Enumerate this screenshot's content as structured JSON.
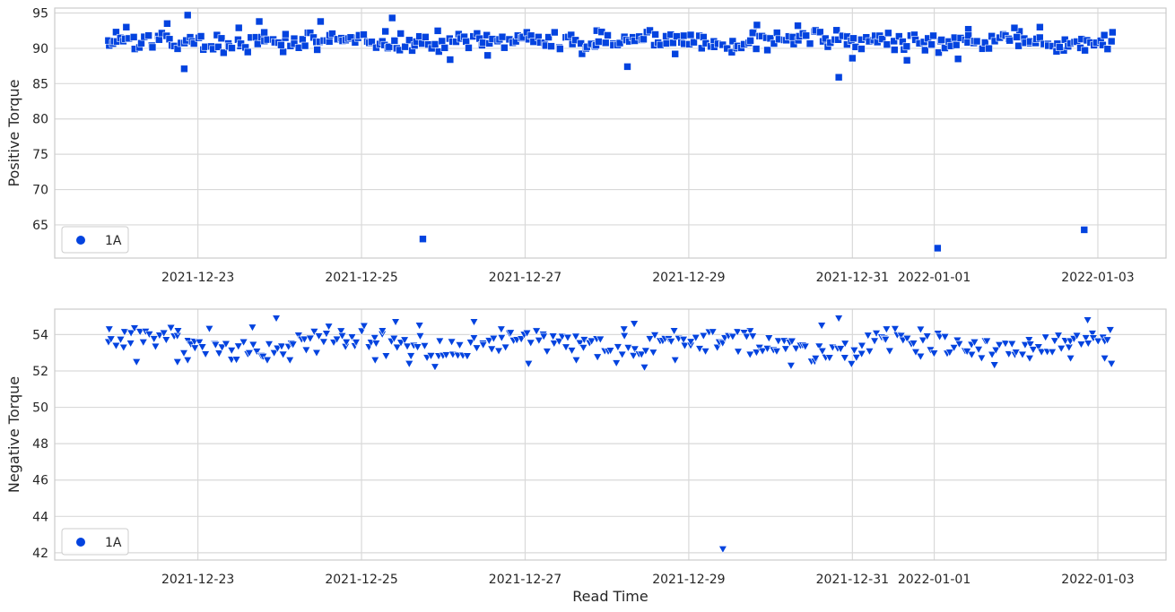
{
  "chart_data": [
    {
      "type": "scatter",
      "ylabel": "Positive Torque",
      "xlabel": "",
      "ylim": [
        60.3,
        95.7
      ],
      "xlim": [
        "2021-12-21 06:00",
        "2022-01-03 20:00"
      ],
      "yticks": [
        65,
        70,
        75,
        80,
        85,
        90,
        95
      ],
      "xticks": [
        "2021-12-23",
        "2021-12-25",
        "2021-12-27",
        "2021-12-29",
        "2021-12-31",
        "2022-01-01",
        "2022-01-03"
      ],
      "grid": true,
      "legend": {
        "entries": [
          "1A"
        ],
        "placement": "lower-left"
      },
      "series": [
        {
          "name": "1A",
          "marker": "square",
          "color": "#0343df",
          "baseline": 91.0,
          "amplitude": 1.2,
          "start": "2021-12-21 22:00",
          "end": "2022-01-03 04:00",
          "count": 340,
          "points": [
            [
              "2021-12-21 22:00",
              90.4
            ],
            [
              "2021-12-22 00:00",
              92.3
            ],
            [
              "2021-12-22 03:00",
              93.0
            ],
            [
              "2021-12-22 15:00",
              93.5
            ],
            [
              "2021-12-22 20:00",
              87.1
            ],
            [
              "2021-12-22 21:00",
              94.7
            ],
            [
              "2021-12-23 12:00",
              92.9
            ],
            [
              "2021-12-23 18:00",
              93.8
            ],
            [
              "2021-12-24 01:00",
              89.5
            ],
            [
              "2021-12-24 11:00",
              89.8
            ],
            [
              "2021-12-24 12:00",
              93.8
            ],
            [
              "2021-12-25 07:00",
              92.4
            ],
            [
              "2021-12-25 09:00",
              94.3
            ],
            [
              "2021-12-25 18:00",
              63.0
            ],
            [
              "2021-12-26 02:00",
              88.4
            ],
            [
              "2021-12-26 13:00",
              89.0
            ],
            [
              "2021-12-27 21:00",
              92.5
            ],
            [
              "2021-12-28 06:00",
              87.4
            ],
            [
              "2021-12-28 20:00",
              89.2
            ],
            [
              "2021-12-29 19:00",
              92.3
            ],
            [
              "2021-12-29 20:00",
              93.3
            ],
            [
              "2021-12-30 20:00",
              85.9
            ],
            [
              "2021-12-30 08:00",
              93.2
            ],
            [
              "2021-12-31 00:00",
              88.6
            ],
            [
              "2021-12-31 16:00",
              88.3
            ],
            [
              "2022-01-01 01:00",
              61.7
            ],
            [
              "2022-01-01 07:00",
              88.5
            ],
            [
              "2022-01-01 10:00",
              92.7
            ],
            [
              "2022-01-02 01:00",
              92.4
            ],
            [
              "2022-01-02 07:00",
              93.0
            ],
            [
              "2022-01-02 20:00",
              64.3
            ],
            [
              "2022-01-02 14:00",
              89.7
            ],
            [
              "2022-01-03 04:00",
              91.0
            ]
          ]
        }
      ]
    },
    {
      "type": "scatter",
      "ylabel": "Negative Torque",
      "xlabel": "Read Time",
      "ylim": [
        41.6,
        55.4
      ],
      "xlim": [
        "2021-12-21 06:00",
        "2022-01-03 20:00"
      ],
      "yticks": [
        42,
        44,
        46,
        48,
        50,
        52,
        54
      ],
      "xticks": [
        "2021-12-23",
        "2021-12-25",
        "2021-12-27",
        "2021-12-29",
        "2021-12-31",
        "2022-01-01",
        "2022-01-03"
      ],
      "grid": true,
      "legend": {
        "entries": [
          "1A"
        ],
        "placement": "lower-left"
      },
      "series": [
        {
          "name": "1A",
          "marker": "triangle-down",
          "color": "#0343df",
          "baseline": 53.5,
          "amplitude": 0.65,
          "start": "2021-12-21 22:00",
          "end": "2022-01-03 04:00",
          "count": 300,
          "points": [
            [
              "2021-12-21 22:00",
              54.3
            ],
            [
              "2021-12-22 06:00",
              52.5
            ],
            [
              "2021-12-22 18:00",
              52.5
            ],
            [
              "2021-12-22 21:00",
              52.6
            ],
            [
              "2021-12-23 16:00",
              54.4
            ],
            [
              "2021-12-23 23:00",
              54.9
            ],
            [
              "2021-12-24 03:00",
              52.6
            ],
            [
              "2021-12-24 18:00",
              54.2
            ],
            [
              "2021-12-25 04:00",
              52.6
            ],
            [
              "2021-12-25 10:00",
              54.7
            ],
            [
              "2021-12-25 14:00",
              52.4
            ],
            [
              "2021-12-25 17:00",
              54.5
            ],
            [
              "2021-12-26 09:00",
              54.7
            ],
            [
              "2021-12-26 17:00",
              54.3
            ],
            [
              "2021-12-27 01:00",
              52.4
            ],
            [
              "2021-12-27 15:00",
              52.6
            ],
            [
              "2021-12-28 05:00",
              54.3
            ],
            [
              "2021-12-28 08:00",
              54.6
            ],
            [
              "2021-12-28 11:00",
              52.2
            ],
            [
              "2021-12-28 20:00",
              52.6
            ],
            [
              "2021-12-29 10:00",
              42.2
            ],
            [
              "2021-12-29 18:00",
              54.2
            ],
            [
              "2021-12-30 06:00",
              52.3
            ],
            [
              "2021-12-30 15:00",
              54.5
            ],
            [
              "2021-12-30 20:00",
              54.9
            ],
            [
              "2021-12-31 10:00",
              54.3
            ],
            [
              "2021-12-31 20:00",
              52.8
            ],
            [
              "2022-01-01 11:00",
              52.9
            ],
            [
              "2022-01-02 04:00",
              52.7
            ],
            [
              "2022-01-02 16:00",
              52.7
            ],
            [
              "2022-01-02 21:00",
              54.8
            ],
            [
              "2022-01-03 02:00",
              52.7
            ],
            [
              "2022-01-03 04:00",
              52.4
            ]
          ]
        }
      ]
    }
  ]
}
